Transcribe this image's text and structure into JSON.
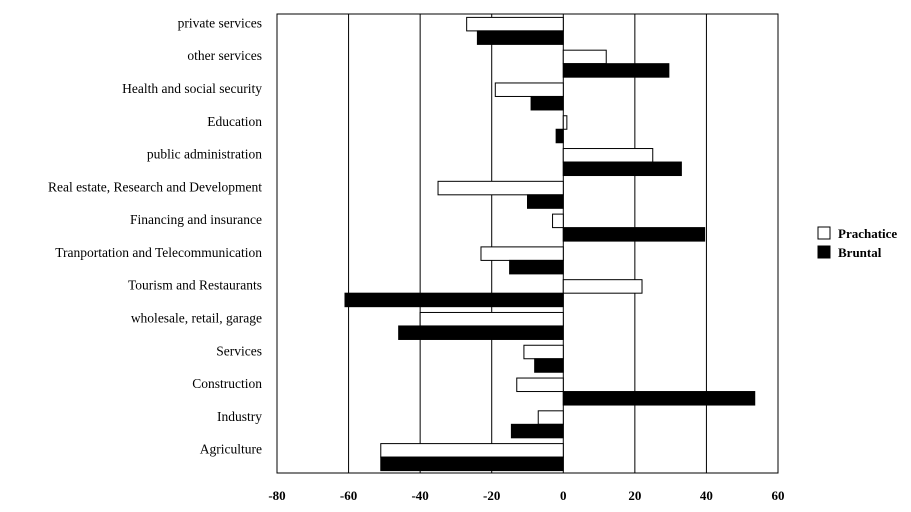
{
  "chart_data": {
    "type": "bar",
    "orientation": "horizontal",
    "title": "",
    "xlabel": "",
    "ylabel": "",
    "xlim": [
      -80,
      60
    ],
    "xticks": [
      "-80",
      "-60",
      "-40",
      "-20",
      "0",
      "20",
      "40",
      "60"
    ],
    "grid": "vertical",
    "legend_position": "right",
    "categories": [
      "private services",
      "other services",
      "Health and social security",
      "Education",
      "public administration",
      "Real estate, Research and Development",
      "Financing and insurance",
      "Tranportation and Telecommunication",
      "Tourism and Restaurants",
      "wholesale, retail, garage",
      "Services",
      "Construction",
      "Industry",
      "Agriculture"
    ],
    "series": [
      {
        "name": "Prachatice",
        "color": "#ffffff",
        "stroke": "#000000",
        "values": [
          -27,
          12,
          -19,
          1,
          25,
          -35,
          -3,
          -23,
          22,
          -40,
          -11,
          -13,
          -7,
          -51
        ]
      },
      {
        "name": "Bruntal",
        "color": "#000000",
        "stroke": "#000000",
        "values": [
          -24,
          29.5,
          -9,
          -2,
          33,
          -10,
          39.5,
          -15,
          -61,
          -46,
          -8,
          53.5,
          -14.5,
          -51
        ]
      }
    ]
  }
}
